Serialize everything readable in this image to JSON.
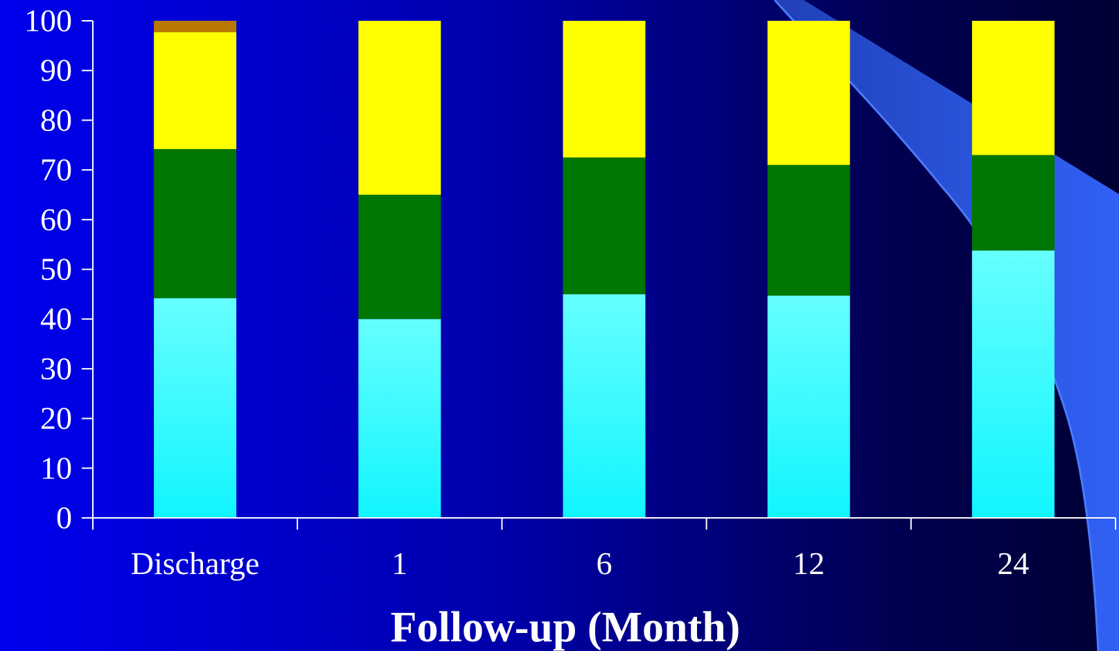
{
  "chart_data": {
    "type": "bar",
    "stacked": true,
    "title": "",
    "xlabel": "Follow-up (Month)",
    "ylabel": "",
    "ylim": [
      0,
      100
    ],
    "yticks": [
      0,
      10,
      20,
      30,
      40,
      50,
      60,
      70,
      80,
      90,
      100
    ],
    "categories": [
      "Discharge",
      "1",
      "6",
      "12",
      "24"
    ],
    "series": [
      {
        "values": [
          44.2,
          40.0,
          45.0,
          44.7,
          53.8
        ],
        "color": "#33ffff"
      },
      {
        "values": [
          30.0,
          25.0,
          27.5,
          26.3,
          19.2
        ],
        "color": "#007700"
      },
      {
        "values": [
          23.5,
          35.0,
          27.5,
          29.0,
          27.0
        ],
        "color": "#ffff00"
      },
      {
        "values": [
          2.3,
          0,
          0,
          0,
          0
        ],
        "color": "#b87800"
      }
    ],
    "grid": false,
    "legend": "none"
  },
  "colors": {
    "background_left": "#0000ee",
    "background_right": "#000033",
    "axis": "#ffffff",
    "decor_swoosh": "#3366ff"
  }
}
